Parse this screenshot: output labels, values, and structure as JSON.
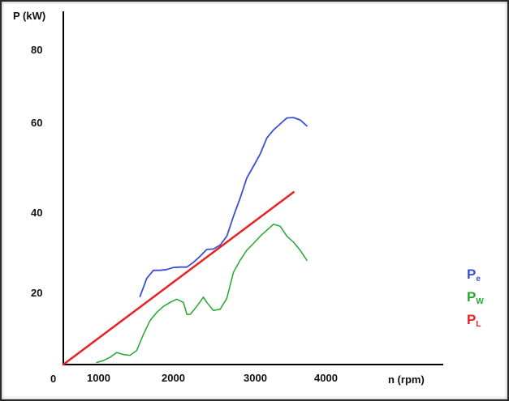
{
  "chart_data": {
    "type": "line",
    "title": "",
    "xlabel": "n (rpm)",
    "ylabel": "P (kW)",
    "xlim": [
      0,
      4300
    ],
    "ylim": [
      0,
      88
    ],
    "x_ticks": [
      "0",
      "1000",
      "2000",
      "3000",
      "4000"
    ],
    "y_ticks": [
      "20",
      "40",
      "60",
      "80"
    ],
    "grid": false,
    "legend_position": "right",
    "legend": [
      {
        "main": "P",
        "sub": "e",
        "color": "#3b4fd6"
      },
      {
        "main": "P",
        "sub": "W",
        "color": "#22a82e"
      },
      {
        "main": "P",
        "sub": "L",
        "color": "#e82020"
      }
    ],
    "series": [
      {
        "color": "#3b4fd6",
        "stroke_width": 1.8,
        "x": [
          1150,
          1250,
          1350,
          1450,
          1550,
          1650,
          1750,
          1850,
          1950,
          2050,
          2150,
          2250,
          2350,
          2450,
          2550,
          2650,
          2750,
          2850,
          2950,
          3050,
          3150,
          3250,
          3350,
          3450,
          3550,
          3650
        ],
        "y": [
          17,
          21.5,
          23.5,
          23.5,
          23.7,
          24.2,
          24.3,
          24.3,
          25.5,
          27,
          28.7,
          28.8,
          29.8,
          32,
          37,
          41.5,
          46.5,
          49.5,
          52.5,
          56.5,
          58.5,
          60,
          61.5,
          61.6,
          61,
          59.5
        ]
      },
      {
        "color": "#22a82e",
        "stroke_width": 1.5,
        "x": [
          500,
          600,
          700,
          800,
          900,
          1000,
          1100,
          1200,
          1300,
          1400,
          1500,
          1600,
          1700,
          1800,
          1850,
          1900,
          2000,
          2100,
          2150,
          2250,
          2350,
          2450,
          2550,
          2650,
          2750,
          2850,
          2950,
          3050,
          3150,
          3250,
          3350,
          3450,
          3550,
          3650
        ],
        "y": [
          0.5,
          1,
          1.8,
          3,
          2.5,
          2.3,
          3.5,
          7.5,
          11,
          13,
          14.5,
          15.5,
          16.3,
          15.5,
          12.5,
          12.5,
          14.5,
          16.8,
          15.5,
          13.5,
          13.8,
          16.5,
          23,
          26,
          28.5,
          30.2,
          32,
          33.5,
          35,
          34.5,
          32,
          30.5,
          28.5,
          26
        ]
      },
      {
        "color": "#e82020",
        "stroke_width": 2.5,
        "x": [
          0,
          3450
        ],
        "y": [
          0,
          43
        ]
      }
    ]
  }
}
